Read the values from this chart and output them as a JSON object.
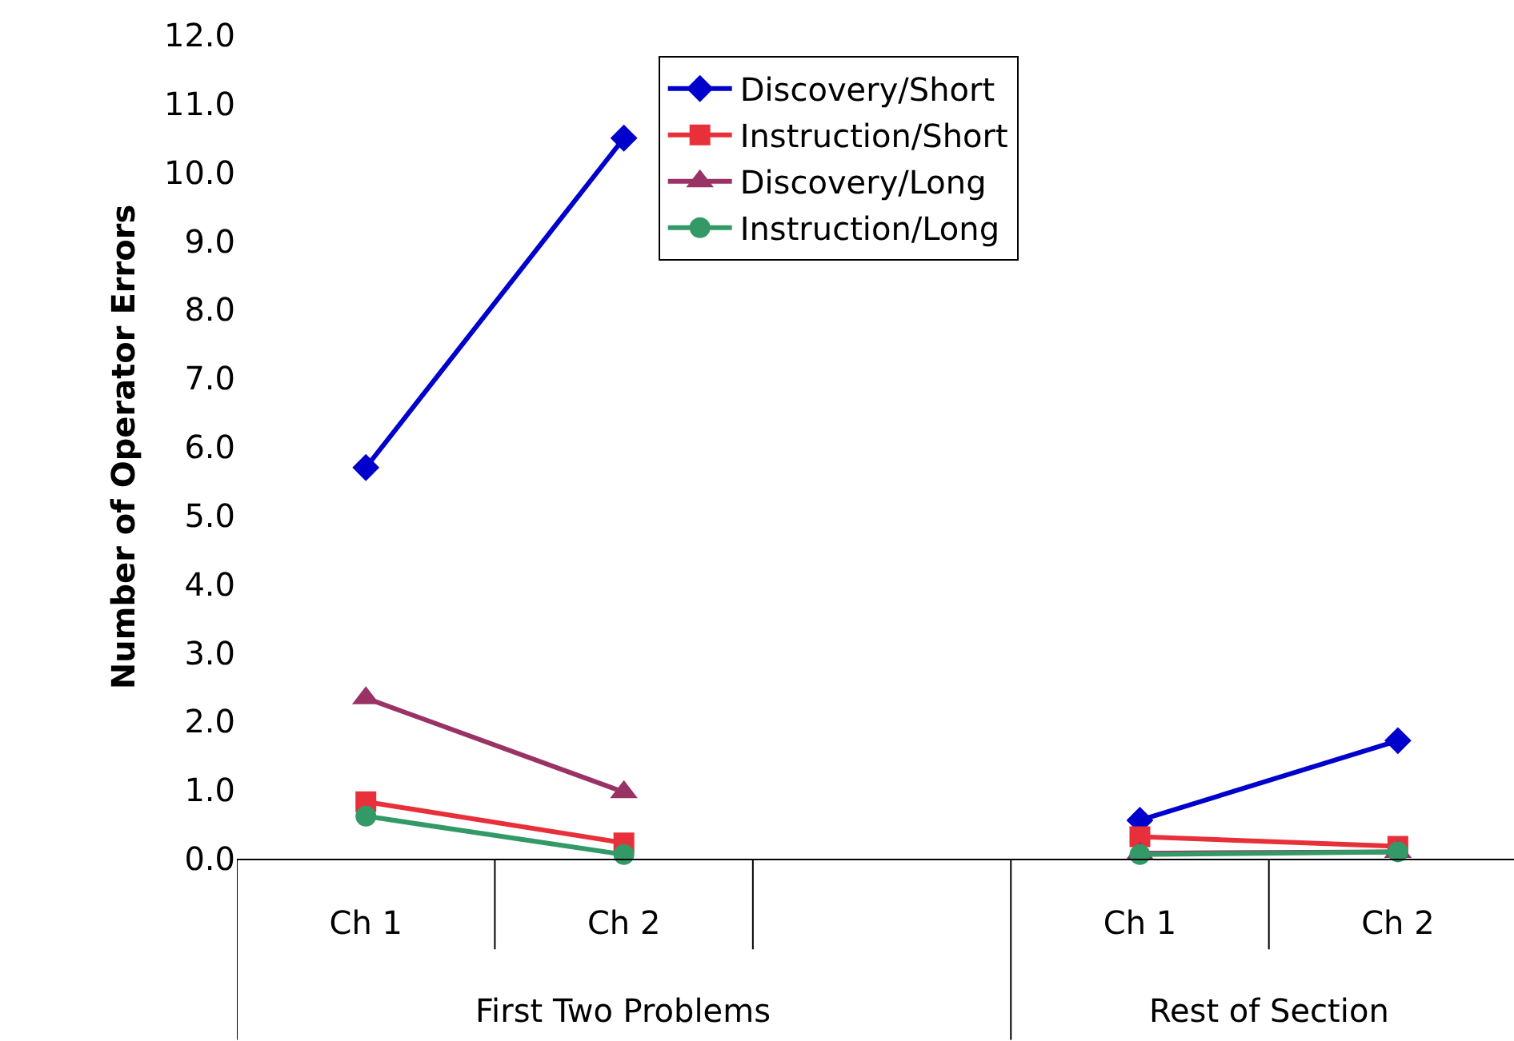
{
  "chart_data": {
    "type": "line",
    "ylabel": "Number of Operator Errors",
    "categories": [
      "Ch 1",
      "Ch 2",
      null,
      "Ch 1",
      "Ch 2"
    ],
    "annotations": [
      "First Two Problems",
      "Rest of Section"
    ],
    "series": [
      {
        "name": "Discovery/Short",
        "color": "#0000cc",
        "marker": "diamond",
        "values": [
          5.7,
          10.5,
          null,
          0.56,
          1.72
        ]
      },
      {
        "name": "Instruction/Short",
        "color": "#e8303a",
        "marker": "square",
        "values": [
          0.83,
          0.23,
          null,
          0.32,
          0.18
        ]
      },
      {
        "name": "Discovery/Long",
        "color": "#993366",
        "marker": "triangle",
        "values": [
          2.34,
          0.97,
          null,
          0.08,
          0.1
        ]
      },
      {
        "name": "Instruction/Long",
        "color": "#339966",
        "marker": "circle",
        "values": [
          0.62,
          0.06,
          null,
          0.06,
          0.1
        ]
      }
    ],
    "ylim": [
      0,
      12
    ],
    "yticks": [
      {
        "value": 0,
        "label": "0.0"
      },
      {
        "value": 1,
        "label": "1.0"
      },
      {
        "value": 2,
        "label": "2.0"
      },
      {
        "value": 3,
        "label": "3.0"
      },
      {
        "value": 4,
        "label": "4.0"
      },
      {
        "value": 5,
        "label": "5.0"
      },
      {
        "value": 6,
        "label": "6.0"
      },
      {
        "value": 7,
        "label": "7.0"
      },
      {
        "value": 8,
        "label": "8.0"
      },
      {
        "value": 9,
        "label": "9.0"
      },
      {
        "value": 10,
        "label": "10.0"
      },
      {
        "value": 11,
        "label": "11.0"
      },
      {
        "value": 12,
        "label": "12.0"
      }
    ],
    "legend": "top"
  }
}
